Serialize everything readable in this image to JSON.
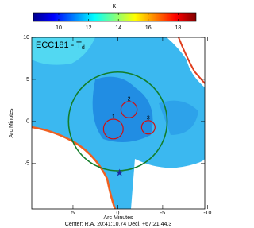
{
  "chart_data": {
    "type": "image",
    "title": "ECC181 - T",
    "title_subscript": "d",
    "colorbar": {
      "label": "K",
      "clim": [
        8.3,
        19.2
      ],
      "ticks": [
        10,
        12,
        14,
        16,
        18
      ],
      "colors": [
        "#00008f",
        "#0000ff",
        "#0080ff",
        "#00ffff",
        "#80ff80",
        "#ffff00",
        "#ff8000",
        "#ff0000",
        "#800000"
      ]
    },
    "x_label": "Arc Minutes",
    "y_label": "Arc Minutes",
    "xlim": [
      9.6,
      -9.7
    ],
    "ylim": [
      -10.4,
      10
    ],
    "xticks": [
      5,
      0,
      -5,
      -10
    ],
    "yticks": [
      -5,
      0,
      5,
      10
    ],
    "big_circle": {
      "x": 0,
      "y": 0,
      "r": 5.5,
      "color": "#137d2a"
    },
    "regions": [
      {
        "label": "1",
        "x": 0.5,
        "y": -0.9,
        "r": 1.1
      },
      {
        "label": "2",
        "x": -1.25,
        "y": 1.4,
        "r": 0.9
      },
      {
        "label": "3",
        "x": -3.4,
        "y": -0.7,
        "r": 0.75
      }
    ],
    "region_color": "#d01010",
    "star": {
      "x": -0.2,
      "y": -6.1,
      "color": "#1a2aa0"
    },
    "footer": "Center: R.A. 20:41:10.74  Decl. +67:21:44.3"
  }
}
